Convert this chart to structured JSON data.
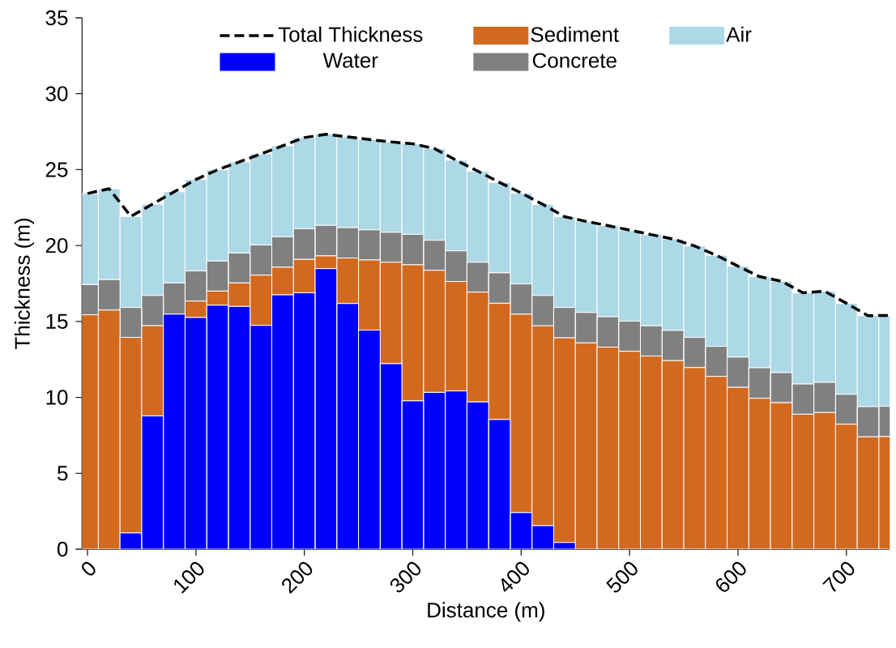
{
  "chart_data": {
    "type": "bar",
    "stacked": true,
    "xlabel": "Distance (m)",
    "ylabel": "Thickness (m)",
    "x": [
      0,
      20,
      40,
      60,
      80,
      100,
      120,
      140,
      160,
      180,
      200,
      220,
      240,
      260,
      280,
      300,
      320,
      340,
      360,
      380,
      400,
      420,
      440,
      460,
      480,
      500,
      520,
      540,
      560,
      580,
      600,
      620,
      640,
      660,
      680,
      700,
      720,
      740
    ],
    "series": [
      {
        "name": "Total Thickness",
        "type": "line",
        "line_style": "dashed",
        "color": "#000000",
        "values": [
          23.43,
          23.74,
          21.92,
          22.73,
          23.54,
          24.35,
          24.99,
          25.51,
          26.04,
          26.57,
          27.11,
          27.33,
          27.16,
          26.98,
          26.83,
          26.7,
          26.39,
          25.62,
          24.9,
          24.16,
          23.46,
          22.71,
          21.9,
          21.59,
          21.31,
          21.02,
          20.72,
          20.43,
          19.97,
          19.36,
          18.64,
          17.95,
          17.65,
          16.89,
          16.99,
          16.2,
          15.38,
          15.4
        ]
      },
      {
        "name": "Water",
        "color": "#0000ff",
        "values": [
          0,
          0,
          1.07,
          8.78,
          15.48,
          15.26,
          16.07,
          15.99,
          14.74,
          16.75,
          16.89,
          18.48,
          16.18,
          14.43,
          12.22,
          9.77,
          10.33,
          10.42,
          9.7,
          8.54,
          2.41,
          1.55,
          0.44,
          0,
          0,
          0,
          0,
          0,
          0,
          0,
          0,
          0,
          0,
          0,
          0,
          0,
          0,
          0
        ]
      },
      {
        "name": "Sediment",
        "color": "#d2691e",
        "values": [
          15.44,
          15.75,
          12.88,
          5.94,
          0,
          1.08,
          0.93,
          1.55,
          3.31,
          1.82,
          2.2,
          0.84,
          3.0,
          4.62,
          6.68,
          8.96,
          8.04,
          7.21,
          7.23,
          7.66,
          13.07,
          13.16,
          13.48,
          13.59,
          13.31,
          13.03,
          12.72,
          12.42,
          11.96,
          11.38,
          10.66,
          9.94,
          9.65,
          8.89,
          9.0,
          8.23,
          7.4,
          7.42
        ]
      },
      {
        "name": "Concrete",
        "color": "#808080",
        "values": [
          1.99,
          2.01,
          1.97,
          1.99,
          2.06,
          1.99,
          1.98,
          1.97,
          1.99,
          2.01,
          2.02,
          2.01,
          2.0,
          1.98,
          1.97,
          2.01,
          1.98,
          2.02,
          1.97,
          2.0,
          1.99,
          2.0,
          2.0,
          2.0,
          2.0,
          1.99,
          1.99,
          1.99,
          1.99,
          1.98,
          1.99,
          2.01,
          1.98,
          1.99,
          1.99,
          1.97,
          1.99,
          1.99
        ]
      },
      {
        "name": "Air",
        "color": "#add8e6",
        "values": [
          6.0,
          5.98,
          6.0,
          6.02,
          6.0,
          6.02,
          6.01,
          6.0,
          6.0,
          5.99,
          6.0,
          6.0,
          5.98,
          5.95,
          5.96,
          5.96,
          6.04,
          5.97,
          6.0,
          5.96,
          5.99,
          6.0,
          5.98,
          6.0,
          6.0,
          6.0,
          6.01,
          6.02,
          6.02,
          6.0,
          5.99,
          6.0,
          6.02,
          6.01,
          6.0,
          6.0,
          5.99,
          5.99
        ]
      }
    ],
    "xlim": [
      -5,
      740
    ],
    "ylim": [
      0,
      35
    ],
    "xticks": [
      0,
      100,
      200,
      300,
      400,
      500,
      600,
      700
    ],
    "yticks": [
      0,
      5,
      10,
      15,
      20,
      25,
      30,
      35
    ],
    "legend": "top"
  }
}
